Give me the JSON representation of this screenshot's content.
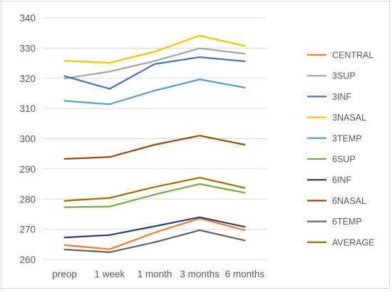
{
  "chart_data": {
    "type": "line",
    "title": "",
    "xlabel": "",
    "ylabel": "",
    "categories": [
      "preop",
      "1 week",
      "1 month",
      "3 months",
      "6 months"
    ],
    "ylim": [
      260,
      340
    ],
    "yticks": [
      260,
      270,
      280,
      290,
      300,
      310,
      320,
      330,
      340
    ],
    "grid": true,
    "legend_position": "right",
    "series": [
      {
        "name": "CENTRAL",
        "color": "#ED7D31",
        "values": [
          264.8,
          263.4,
          268.9,
          273.6,
          269.7
        ]
      },
      {
        "name": "3SUP",
        "color": "#A5A5A5",
        "values": [
          319.9,
          322.2,
          325.7,
          329.9,
          328.1
        ]
      },
      {
        "name": "3INF",
        "color": "#4472C4",
        "values": [
          320.7,
          316.5,
          324.7,
          327.0,
          325.6
        ]
      },
      {
        "name": "3NASAL",
        "color": "#FFC000",
        "values": [
          325.8,
          325.1,
          328.8,
          334.1,
          330.7
        ]
      },
      {
        "name": "3TEMP",
        "color": "#5B9BD5",
        "values": [
          312.5,
          311.4,
          315.9,
          319.6,
          316.9
        ]
      },
      {
        "name": "6SUP",
        "color": "#70AD47",
        "values": [
          277.3,
          277.5,
          281.5,
          285.0,
          282.1
        ]
      },
      {
        "name": "6INF",
        "color": "#264478",
        "values": [
          267.3,
          268.1,
          271.0,
          274.0,
          270.8
        ]
      },
      {
        "name": "6NASAL",
        "color": "#9E480E",
        "values": [
          293.3,
          293.9,
          298.0,
          301.0,
          298.0
        ]
      },
      {
        "name": "6TEMP",
        "color": "#636363",
        "values": [
          263.3,
          262.4,
          265.7,
          269.7,
          266.3
        ]
      },
      {
        "name": "AVERAGE",
        "color": "#997300",
        "values": [
          279.4,
          280.4,
          284.0,
          287.1,
          283.7
        ]
      }
    ]
  }
}
